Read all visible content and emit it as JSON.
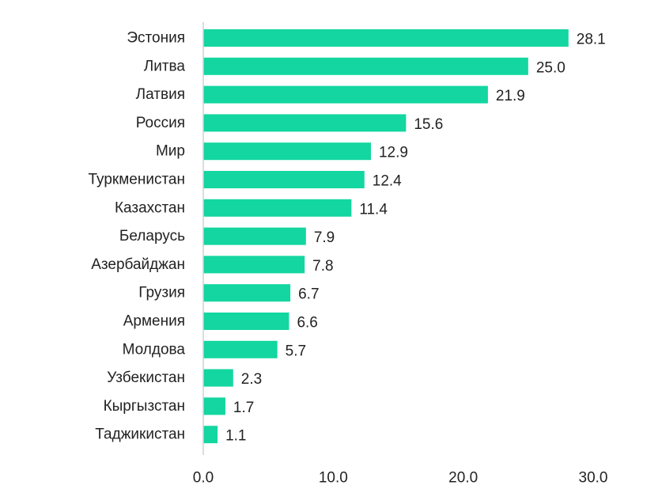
{
  "chart_data": {
    "type": "bar",
    "orientation": "horizontal",
    "categories": [
      "Эстония",
      "Литва",
      "Латвия",
      "Россия",
      "Мир",
      "Туркменистан",
      "Казахстан",
      "Беларусь",
      "Азербайджан",
      "Грузия",
      "Армения",
      "Молдова",
      "Узбекистан",
      "Кыргызстан",
      "Таджикистан"
    ],
    "values": [
      28.1,
      25.0,
      21.9,
      15.6,
      12.9,
      12.4,
      11.4,
      7.9,
      7.8,
      6.7,
      6.6,
      5.7,
      2.3,
      1.7,
      1.1
    ],
    "value_labels": [
      "28.1",
      "25.0",
      "21.9",
      "15.6",
      "12.9",
      "12.4",
      "11.4",
      "7.9",
      "7.8",
      "6.7",
      "6.6",
      "5.7",
      "2.3",
      "1.7",
      "1.1"
    ],
    "xlim": [
      0,
      30
    ],
    "xticks": [
      0,
      10,
      20,
      30
    ],
    "xtick_labels": [
      "0.0",
      "10.0",
      "20.0",
      "30.0"
    ],
    "bar_color": "#13d6a0",
    "axis_color": "#d0d0d0",
    "grid": false,
    "legend": "none"
  }
}
